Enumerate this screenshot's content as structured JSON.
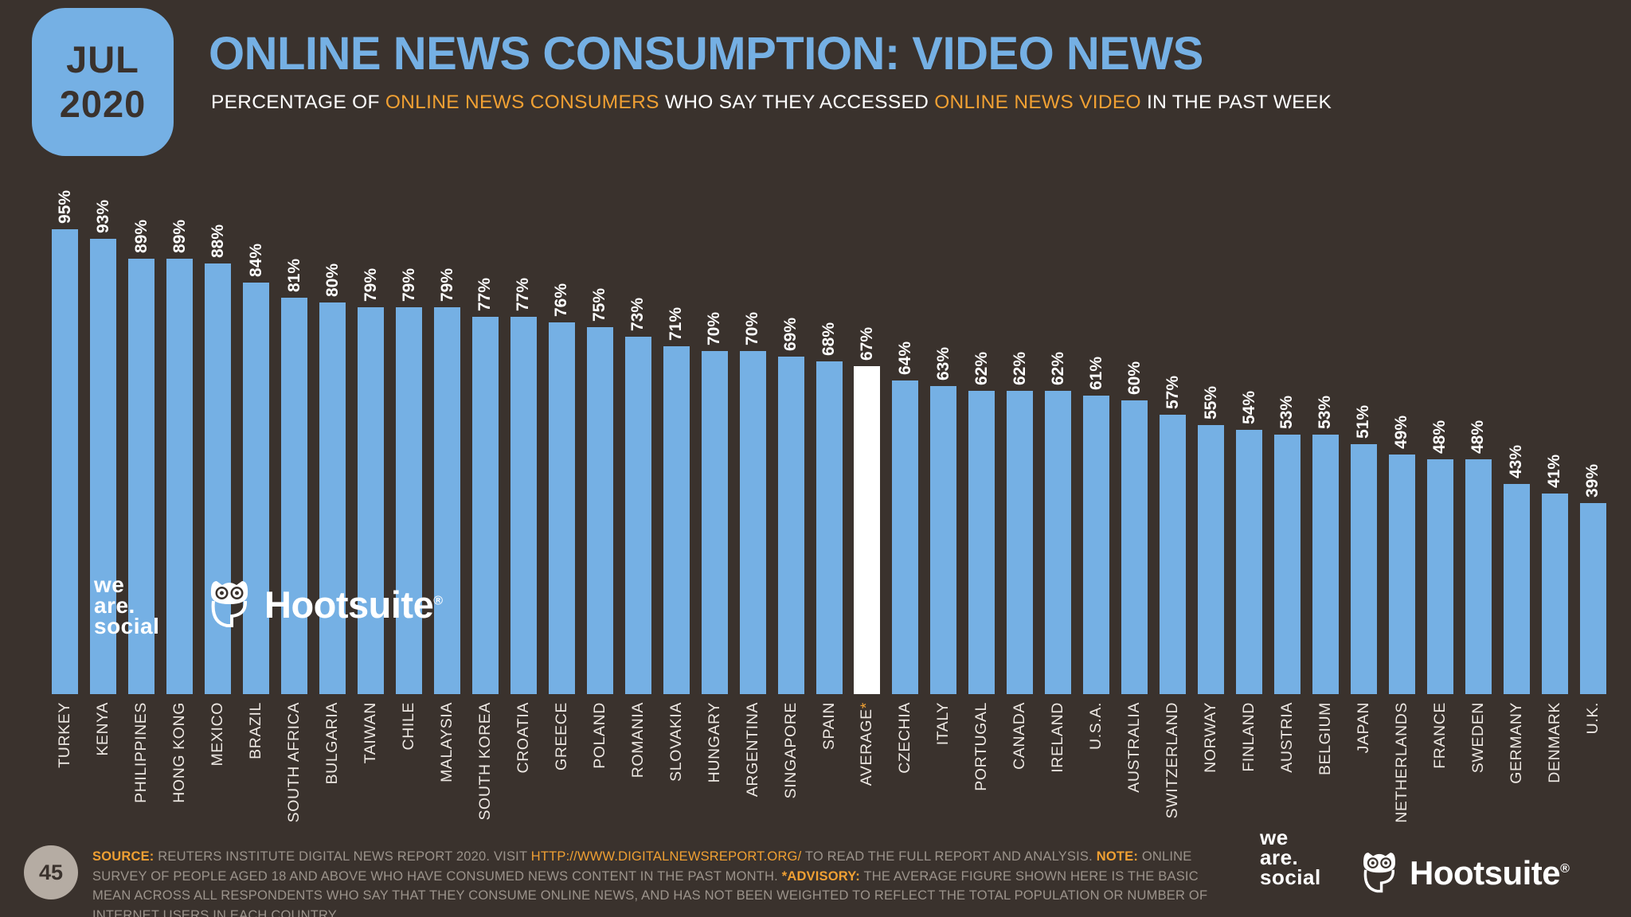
{
  "badge": {
    "month": "JUL",
    "year": "2020"
  },
  "header": {
    "title": "ONLINE NEWS CONSUMPTION: VIDEO NEWS",
    "subtitle_parts": [
      {
        "text": "PERCENTAGE OF ",
        "highlight": false
      },
      {
        "text": "ONLINE NEWS CONSUMERS",
        "highlight": true
      },
      {
        "text": " WHO SAY THEY ACCESSED ",
        "highlight": false
      },
      {
        "text": "ONLINE NEWS VIDEO",
        "highlight": true
      },
      {
        "text": " IN THE PAST WEEK",
        "highlight": false
      }
    ]
  },
  "chart_data": {
    "type": "bar",
    "title": "ONLINE NEWS CONSUMPTION: VIDEO NEWS",
    "unit": "%",
    "ylim": [
      0,
      100
    ],
    "grid": false,
    "legend_position": "none",
    "bar_color": "#75B0E4",
    "highlight_bar_color": "#FFFFFF",
    "highlight_category": "AVERAGE*",
    "categories": [
      "TURKEY",
      "KENYA",
      "PHILIPPINES",
      "HONG KONG",
      "MEXICO",
      "BRAZIL",
      "SOUTH AFRICA",
      "BULGARIA",
      "TAIWAN",
      "CHILE",
      "MALAYSIA",
      "SOUTH KOREA",
      "CROATIA",
      "GREECE",
      "POLAND",
      "ROMANIA",
      "SLOVAKIA",
      "HUNGARY",
      "ARGENTINA",
      "SINGAPORE",
      "SPAIN",
      "AVERAGE*",
      "CZECHIA",
      "ITALY",
      "PORTUGAL",
      "CANADA",
      "IRELAND",
      "U.S.A.",
      "AUSTRALIA",
      "SWITZERLAND",
      "NORWAY",
      "FINLAND",
      "AUSTRIA",
      "BELGIUM",
      "JAPAN",
      "NETHERLANDS",
      "FRANCE",
      "SWEDEN",
      "GERMANY",
      "DENMARK",
      "U.K."
    ],
    "values": [
      95,
      93,
      89,
      89,
      88,
      84,
      81,
      80,
      79,
      79,
      79,
      77,
      77,
      76,
      75,
      73,
      71,
      70,
      70,
      69,
      68,
      67,
      64,
      63,
      62,
      62,
      62,
      61,
      60,
      57,
      55,
      54,
      53,
      53,
      51,
      49,
      48,
      48,
      43,
      41,
      39
    ]
  },
  "logos": {
    "we_are_social_lines": [
      "we",
      "are.",
      "social"
    ],
    "hootsuite_wordmark": "Hootsuite",
    "registered_mark": "®"
  },
  "footer": {
    "page_number": "45",
    "note_parts": [
      {
        "text": "SOURCE:",
        "highlight": true,
        "bold": true
      },
      {
        "text": " REUTERS INSTITUTE DIGITAL NEWS REPORT 2020. VISIT ",
        "highlight": false
      },
      {
        "text": "HTTP://WWW.DIGITALNEWSREPORT.ORG/",
        "highlight": true
      },
      {
        "text": " TO READ THE FULL REPORT AND ANALYSIS. ",
        "highlight": false
      },
      {
        "text": "NOTE:",
        "highlight": true,
        "bold": true
      },
      {
        "text": " ONLINE SURVEY OF PEOPLE AGED 18 AND ABOVE WHO HAVE CONSUMED NEWS CONTENT IN THE PAST MONTH. ",
        "highlight": false
      },
      {
        "text": "*ADVISORY:",
        "highlight": true,
        "bold": true
      },
      {
        "text": " THE AVERAGE FIGURE SHOWN HERE IS THE BASIC MEAN ACROSS ALL RESPONDENTS WHO SAY THAT THEY CONSUME ONLINE NEWS, AND HAS NOT BEEN WEIGHTED TO REFLECT THE TOTAL POPULATION OR NUMBER OF INTERNET USERS IN EACH COUNTRY.",
        "highlight": false
      }
    ]
  }
}
